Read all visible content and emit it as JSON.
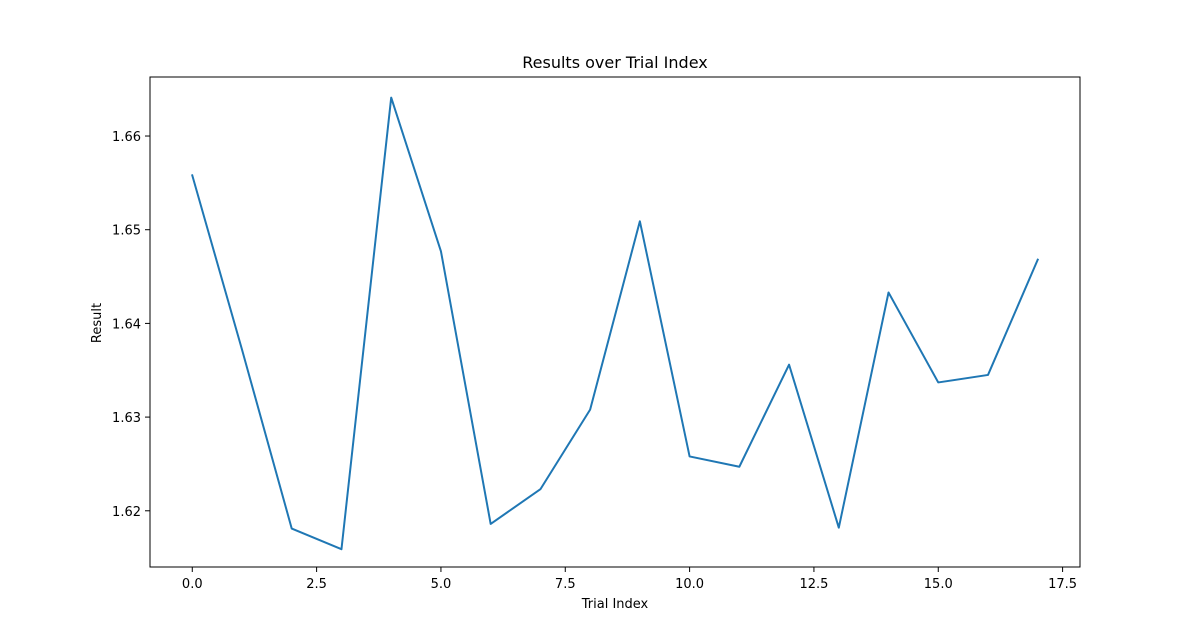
{
  "chart_data": {
    "type": "line",
    "title": "Results over Trial Index",
    "xlabel": "Trial Index",
    "ylabel": "Result",
    "xlim": [
      -0.85,
      17.85
    ],
    "ylim": [
      1.614,
      1.6663
    ],
    "x_ticks": [
      0.0,
      2.5,
      5.0,
      7.5,
      10.0,
      12.5,
      15.0,
      17.5
    ],
    "x_tick_labels": [
      "0.0",
      "2.5",
      "5.0",
      "7.5",
      "10.0",
      "12.5",
      "15.0",
      "17.5"
    ],
    "y_ticks": [
      1.62,
      1.63,
      1.64,
      1.65,
      1.66
    ],
    "y_tick_labels": [
      "1.62",
      "1.63",
      "1.64",
      "1.65",
      "1.66"
    ],
    "grid": false,
    "legend": "none",
    "series": [
      {
        "color": "#1f77b4",
        "x": [
          0,
          1,
          2,
          3,
          4,
          5,
          6,
          7,
          8,
          9,
          10,
          11,
          12,
          13,
          14,
          15,
          16,
          17
        ],
        "values": [
          1.6558,
          1.6372,
          1.6181,
          1.6159,
          1.6641,
          1.6477,
          1.6186,
          1.6223,
          1.6308,
          1.6509,
          1.6258,
          1.6247,
          1.6356,
          1.6182,
          1.6433,
          1.6337,
          1.6345,
          1.6468
        ]
      }
    ]
  }
}
